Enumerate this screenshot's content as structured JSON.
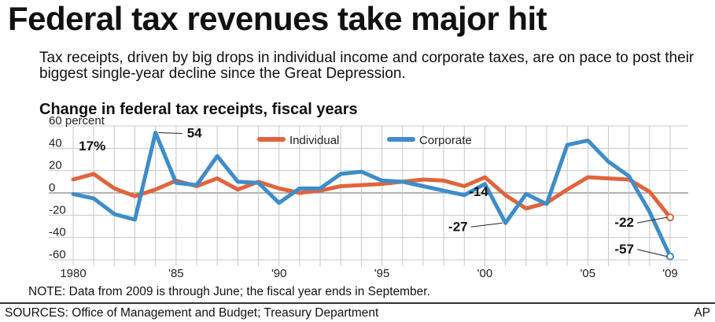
{
  "title": "Federal tax revenues take major hit",
  "subtitle": "Tax receipts, driven by big drops in individual income and corporate taxes, are on pace to post their biggest single-year decline since the Great Depression.",
  "chart_heading": "Change in federal tax receipts, fiscal years",
  "note": "NOTE: Data from 2009 is through June; the fiscal year ends in September.",
  "sources": "SOURCES: Office of Management and Budget; Treasury Department",
  "credit": "AP",
  "colors": {
    "individual": "#e0643c",
    "corporate": "#3d8dc9",
    "grid": "#c8c8c8"
  },
  "chart_data": {
    "type": "line",
    "ylabel": "percent",
    "ylim": [
      -60,
      60
    ],
    "y_ticks": [
      {
        "value": 60,
        "label": "60 percent"
      },
      {
        "value": 40,
        "label": "40"
      },
      {
        "value": 20,
        "label": "20"
      },
      {
        "value": 0,
        "label": "0"
      },
      {
        "value": -20,
        "label": "-20"
      },
      {
        "value": -40,
        "label": "-40"
      },
      {
        "value": -60,
        "label": "-60"
      }
    ],
    "xlim": [
      1980,
      2009
    ],
    "x_ticks": [
      {
        "value": 1980,
        "label": "1980"
      },
      {
        "value": 1985,
        "label": "'85"
      },
      {
        "value": 1990,
        "label": "'90"
      },
      {
        "value": 1995,
        "label": "'95"
      },
      {
        "value": 2000,
        "label": "'00"
      },
      {
        "value": 2005,
        "label": "'05"
      },
      {
        "value": 2009,
        "label": "'09"
      }
    ],
    "x": [
      1980,
      1981,
      1982,
      1983,
      1984,
      1985,
      1986,
      1987,
      1988,
      1989,
      1990,
      1991,
      1992,
      1993,
      1994,
      1995,
      1996,
      1997,
      1998,
      1999,
      2000,
      2001,
      2002,
      2003,
      2004,
      2005,
      2006,
      2007,
      2008,
      2009
    ],
    "series": [
      {
        "name": "Individual",
        "key": "individual",
        "values": [
          12,
          17,
          4,
          -3,
          3,
          11,
          6,
          13,
          3,
          10,
          4,
          0,
          2,
          6,
          7,
          8,
          10,
          12,
          11,
          6,
          14,
          -2,
          -14,
          -9,
          3,
          14,
          13,
          12,
          1,
          -22
        ]
      },
      {
        "name": "Corporate",
        "key": "corporate",
        "values": [
          -1,
          -5,
          -19,
          -24,
          54,
          9,
          7,
          33,
          10,
          9,
          -9,
          4,
          4,
          17,
          19,
          11,
          10,
          6,
          2,
          -2,
          8,
          -27,
          -1,
          -10,
          43,
          47,
          28,
          15,
          -17,
          -57
        ]
      }
    ],
    "legend_position": "top-center",
    "annotations": [
      {
        "text": "17%",
        "x": 1981,
        "y": 17
      },
      {
        "text": "54",
        "x": 1984,
        "y": 54
      },
      {
        "text": "-14",
        "x": 2002,
        "y": -14
      },
      {
        "text": "-27",
        "x": 2001,
        "y": -27
      },
      {
        "text": "-22",
        "x": 2009,
        "y": -22
      },
      {
        "text": "-57",
        "x": 2009,
        "y": -57
      }
    ]
  }
}
